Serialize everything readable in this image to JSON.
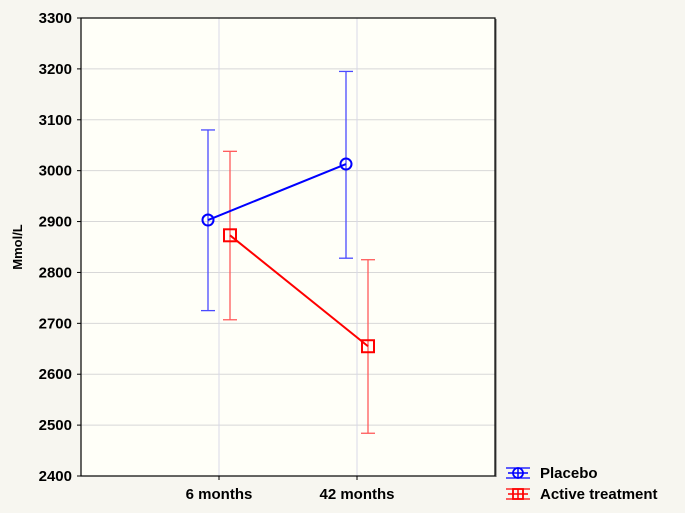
{
  "chart_data": {
    "type": "line",
    "title": "",
    "xlabel": "",
    "ylabel": "Mmol/L",
    "categories": [
      "6 months",
      "42 months"
    ],
    "ylim": [
      2400,
      3300
    ],
    "yticks": [
      2400,
      2500,
      2600,
      2700,
      2800,
      2900,
      3000,
      3100,
      3200,
      3300
    ],
    "grid": true,
    "legend_position": "bottom-right outside",
    "series": [
      {
        "name": "Placebo",
        "color": "#0000ff",
        "marker": "circle",
        "values": [
          2903,
          3013
        ],
        "ci_lower": [
          2725,
          2828
        ],
        "ci_upper": [
          3080,
          3195
        ]
      },
      {
        "name": "Active treatment",
        "color": "#ff0000",
        "marker": "square",
        "values": [
          2873,
          2655
        ],
        "ci_lower": [
          2707,
          2484
        ],
        "ci_upper": [
          3038,
          2825
        ]
      }
    ]
  },
  "colors": {
    "background": "#f7f6f0",
    "plot_bg": "#fffff8",
    "grid": "#d8d8d8",
    "axis": "#000000"
  }
}
